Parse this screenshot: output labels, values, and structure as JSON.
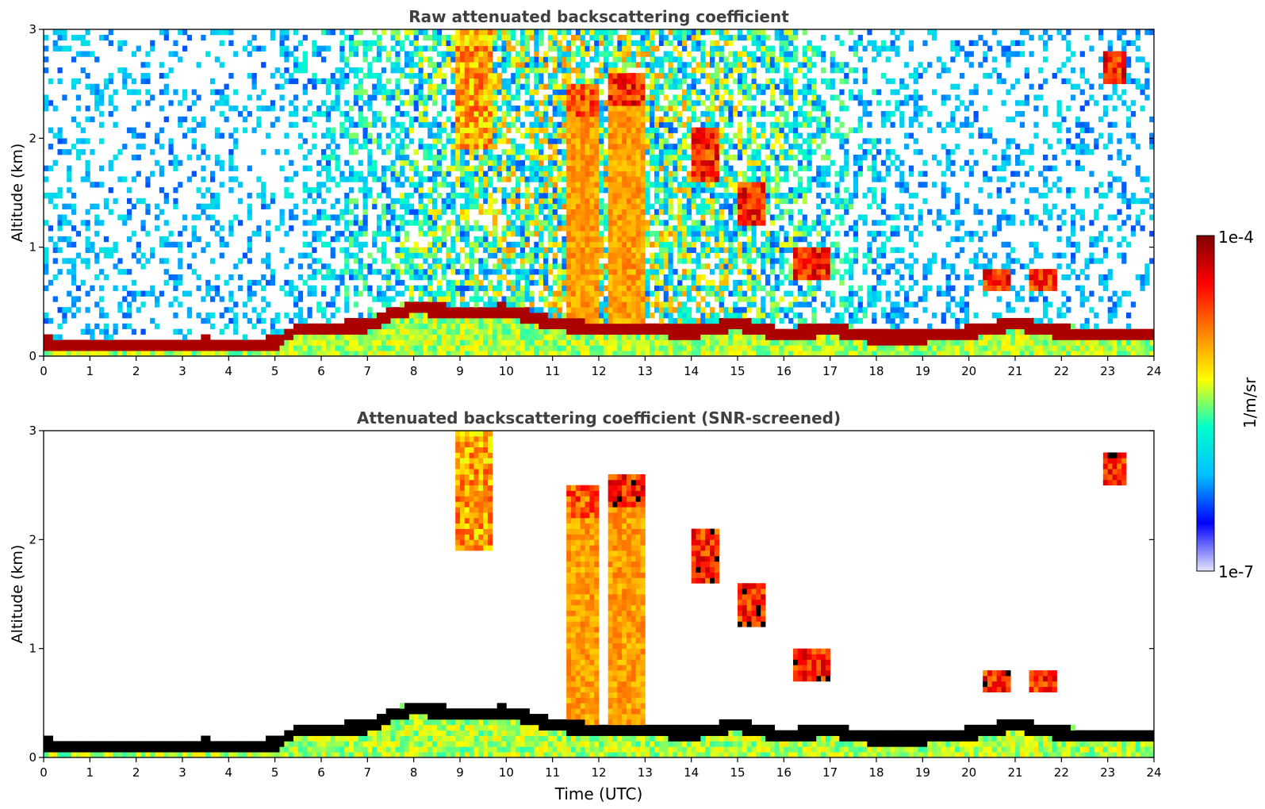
{
  "chart_data": [
    {
      "type": "heatmap",
      "title": "Raw attenuated backscattering coefficient",
      "xlabel": "",
      "ylabel": "Altitude (km)",
      "xlim": [
        0,
        24
      ],
      "ylim": [
        0,
        3
      ],
      "xticks": [
        "0",
        "1",
        "2",
        "3",
        "4",
        "5",
        "6",
        "7",
        "8",
        "9",
        "10",
        "11",
        "12",
        "13",
        "14",
        "15",
        "16",
        "17",
        "18",
        "19",
        "20",
        "21",
        "22",
        "23",
        "24"
      ],
      "yticks": [
        "0",
        "1",
        "2",
        "3"
      ],
      "screened": false,
      "boundary_layer_top_km": [
        [
          0,
          0.12
        ],
        [
          1,
          0.1
        ],
        [
          2,
          0.09
        ],
        [
          3,
          0.1
        ],
        [
          3.5,
          0.12
        ],
        [
          4,
          0.09
        ],
        [
          5,
          0.12
        ],
        [
          5.5,
          0.25
        ],
        [
          6,
          0.25
        ],
        [
          7,
          0.28
        ],
        [
          7.5,
          0.38
        ],
        [
          8,
          0.45
        ],
        [
          9,
          0.4
        ],
        [
          10,
          0.42
        ],
        [
          11,
          0.3
        ],
        [
          12,
          0.25
        ],
        [
          13,
          0.25
        ],
        [
          14,
          0.22
        ],
        [
          15,
          0.3
        ],
        [
          16,
          0.2
        ],
        [
          17,
          0.25
        ],
        [
          18,
          0.17
        ],
        [
          19,
          0.18
        ],
        [
          20,
          0.22
        ],
        [
          21,
          0.3
        ],
        [
          22,
          0.22
        ],
        [
          23,
          0.2
        ],
        [
          24,
          0.2
        ]
      ],
      "cloud_layers": [
        {
          "t": 9.3,
          "w": 0.8,
          "z0": 1.9,
          "z1": 3.0,
          "level": 0.8
        },
        {
          "t": 11.7,
          "w": 0.7,
          "z0": 2.2,
          "z1": 2.5,
          "level": 0.9
        },
        {
          "t": 12.6,
          "w": 0.8,
          "z0": 2.3,
          "z1": 2.6,
          "level": 0.95
        },
        {
          "t": 14.3,
          "w": 0.6,
          "z0": 1.6,
          "z1": 2.1,
          "level": 0.95
        },
        {
          "t": 15.3,
          "w": 0.6,
          "z0": 1.2,
          "z1": 1.6,
          "level": 0.95
        },
        {
          "t": 16.6,
          "w": 0.8,
          "z0": 0.7,
          "z1": 1.0,
          "level": 0.95
        },
        {
          "t": 20.6,
          "w": 0.5,
          "z0": 0.6,
          "z1": 0.8,
          "level": 0.95
        },
        {
          "t": 21.6,
          "w": 0.6,
          "z0": 0.6,
          "z1": 0.8,
          "level": 0.95
        },
        {
          "t": 23.2,
          "w": 0.5,
          "z0": 2.5,
          "z1": 2.8,
          "level": 0.95
        }
      ]
    },
    {
      "type": "heatmap",
      "title": "Attenuated backscattering coefficient (SNR-screened)",
      "xlabel": "Time (UTC)",
      "ylabel": "Altitude (km)",
      "xlim": [
        0,
        24
      ],
      "ylim": [
        0,
        3
      ],
      "xticks": [
        "0",
        "1",
        "2",
        "3",
        "4",
        "5",
        "6",
        "7",
        "8",
        "9",
        "10",
        "11",
        "12",
        "13",
        "14",
        "15",
        "16",
        "17",
        "18",
        "19",
        "20",
        "21",
        "22",
        "23",
        "24"
      ],
      "yticks": [
        "0",
        "1",
        "2",
        "3"
      ],
      "screened": true,
      "boundary_layer_top_km": [
        [
          0,
          0.12
        ],
        [
          1,
          0.1
        ],
        [
          2,
          0.09
        ],
        [
          3,
          0.1
        ],
        [
          3.5,
          0.12
        ],
        [
          4,
          0.09
        ],
        [
          5,
          0.12
        ],
        [
          5.5,
          0.25
        ],
        [
          6,
          0.25
        ],
        [
          7,
          0.28
        ],
        [
          7.5,
          0.38
        ],
        [
          8,
          0.45
        ],
        [
          9,
          0.4
        ],
        [
          10,
          0.42
        ],
        [
          11,
          0.3
        ],
        [
          12,
          0.25
        ],
        [
          13,
          0.25
        ],
        [
          14,
          0.22
        ],
        [
          15,
          0.3
        ],
        [
          16,
          0.2
        ],
        [
          17,
          0.25
        ],
        [
          18,
          0.17
        ],
        [
          19,
          0.18
        ],
        [
          20,
          0.22
        ],
        [
          21,
          0.3
        ],
        [
          22,
          0.22
        ],
        [
          23,
          0.2
        ],
        [
          24,
          0.2
        ]
      ],
      "cloud_layers": [
        {
          "t": 9.3,
          "w": 0.8,
          "z0": 1.9,
          "z1": 3.0,
          "level": 0.8
        },
        {
          "t": 11.7,
          "w": 0.7,
          "z0": 2.2,
          "z1": 2.5,
          "level": 0.9
        },
        {
          "t": 12.6,
          "w": 0.8,
          "z0": 2.3,
          "z1": 2.6,
          "level": 0.95
        },
        {
          "t": 14.3,
          "w": 0.6,
          "z0": 1.6,
          "z1": 2.1,
          "level": 0.95
        },
        {
          "t": 15.3,
          "w": 0.6,
          "z0": 1.2,
          "z1": 1.6,
          "level": 0.95
        },
        {
          "t": 16.6,
          "w": 0.8,
          "z0": 0.7,
          "z1": 1.0,
          "level": 0.95
        },
        {
          "t": 20.6,
          "w": 0.5,
          "z0": 0.6,
          "z1": 0.8,
          "level": 0.95
        },
        {
          "t": 21.6,
          "w": 0.6,
          "z0": 0.6,
          "z1": 0.8,
          "level": 0.95
        },
        {
          "t": 23.2,
          "w": 0.5,
          "z0": 2.5,
          "z1": 2.8,
          "level": 0.95
        }
      ]
    }
  ],
  "colorbar": {
    "max_label": "1e-4",
    "min_label": "1e-7",
    "unit_label": "1/m/sr",
    "colormap": "jet",
    "colors": [
      "#e6e6fa",
      "#0000ff",
      "#00bfff",
      "#00ffcc",
      "#ffff00",
      "#ff8000",
      "#ff0000",
      "#800000"
    ]
  },
  "colors": {
    "title": "#404040",
    "axis": "#000000",
    "background": "#ffffff"
  }
}
